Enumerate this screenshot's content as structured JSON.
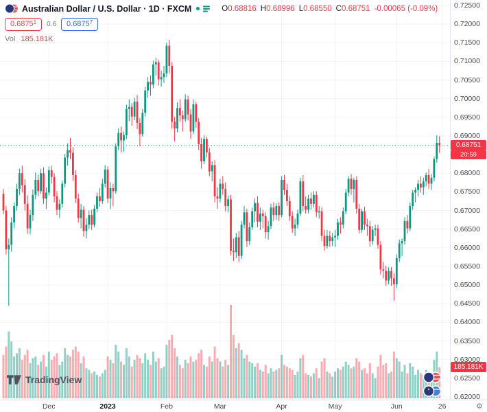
{
  "legend": {
    "title": "Australian Dollar / U.S. Dollar · 1D · FXCM",
    "ohlc": {
      "o_label": "O",
      "o": "0.68816",
      "h_label": "H",
      "h": "0.68996",
      "l_label": "L",
      "l": "0.68550",
      "c_label": "C",
      "c": "0.68751",
      "change": "-0.00065 (-0.09%)"
    },
    "sell": {
      "value": "0.6875",
      "sup": "1"
    },
    "spread": "0.6",
    "buy": {
      "value": "0.6875",
      "sup": "7"
    },
    "vol_label": "Vol",
    "vol_value": "185.181K"
  },
  "axis_badges": {
    "price_badge": "0.68751",
    "countdown": "20:59",
    "volume_badge": "185.181K"
  },
  "footer": {
    "logo_text": "TradingView",
    "gear_icon": "⚙"
  },
  "colors": {
    "up": "#089981",
    "down": "#f23645",
    "vol_up": "rgba(8,153,129,0.45)",
    "vol_down": "rgba(242,54,69,0.42)",
    "grid": "#f0f3fa",
    "accent_buy": "#2962ff",
    "badge_bg": "#f23645"
  },
  "chart_data": {
    "type": "candlestick",
    "title": "Australian Dollar / U.S. Dollar",
    "symbol": "AUD/USD",
    "interval": "1D",
    "exchange": "FXCM",
    "last_close": 0.68751,
    "volume_unit": "K",
    "price_axis": {
      "min": 0.62,
      "max": 0.725,
      "step": 0.005,
      "tick_labels": [
        "0.72500",
        "0.72000",
        "0.71500",
        "0.71000",
        "0.70500",
        "0.70000",
        "0.69500",
        "0.69000",
        "0.68500",
        "0.68000",
        "0.67500",
        "0.67000",
        "0.66500",
        "0.66000",
        "0.65500",
        "0.65000",
        "0.64500",
        "0.64000",
        "0.63500",
        "0.63000",
        "0.62500",
        "0.62000"
      ]
    },
    "time_ticks": [
      {
        "label": "Dec",
        "i": 17
      },
      {
        "label": "2023",
        "i": 39,
        "major": true
      },
      {
        "label": "Feb",
        "i": 61
      },
      {
        "label": "Mar",
        "i": 81
      },
      {
        "label": "Apr",
        "i": 104
      },
      {
        "label": "May",
        "i": 124
      },
      {
        "label": "Jun",
        "i": 147
      },
      {
        "label": "26",
        "i": 164
      }
    ],
    "candles_format": [
      "open",
      "high",
      "low",
      "close",
      "volume_K"
    ],
    "candles": [
      [
        0.6745,
        0.6758,
        0.669,
        0.67,
        260
      ],
      [
        0.67,
        0.6712,
        0.6582,
        0.6596,
        310
      ],
      [
        0.6596,
        0.6625,
        0.6445,
        0.6608,
        400
      ],
      [
        0.6608,
        0.6682,
        0.659,
        0.6668,
        340
      ],
      [
        0.6668,
        0.6722,
        0.6652,
        0.6712,
        250
      ],
      [
        0.6712,
        0.6772,
        0.67,
        0.6758,
        270
      ],
      [
        0.6758,
        0.6812,
        0.6742,
        0.68,
        300
      ],
      [
        0.68,
        0.682,
        0.6748,
        0.6768,
        230
      ],
      [
        0.6768,
        0.6784,
        0.67,
        0.6718,
        260
      ],
      [
        0.6718,
        0.674,
        0.6638,
        0.6652,
        290
      ],
      [
        0.6652,
        0.6702,
        0.6636,
        0.6688,
        210
      ],
      [
        0.6688,
        0.6756,
        0.6672,
        0.6742,
        240
      ],
      [
        0.6742,
        0.6802,
        0.673,
        0.6782,
        250
      ],
      [
        0.6782,
        0.6796,
        0.6738,
        0.6752,
        200
      ],
      [
        0.6752,
        0.6812,
        0.6744,
        0.68,
        220
      ],
      [
        0.68,
        0.6816,
        0.6718,
        0.6732,
        260
      ],
      [
        0.6732,
        0.6762,
        0.6704,
        0.6748,
        190
      ],
      [
        0.6748,
        0.6818,
        0.674,
        0.6808,
        280
      ],
      [
        0.6808,
        0.682,
        0.6772,
        0.679,
        230
      ],
      [
        0.679,
        0.68,
        0.6722,
        0.6738,
        250
      ],
      [
        0.6738,
        0.6752,
        0.6688,
        0.6702,
        270
      ],
      [
        0.6702,
        0.673,
        0.668,
        0.6718,
        200
      ],
      [
        0.6718,
        0.678,
        0.6708,
        0.6772,
        220
      ],
      [
        0.6772,
        0.6852,
        0.6762,
        0.6842,
        300
      ],
      [
        0.6842,
        0.688,
        0.682,
        0.6862,
        260
      ],
      [
        0.6862,
        0.6895,
        0.6838,
        0.6855,
        250
      ],
      [
        0.6855,
        0.687,
        0.678,
        0.6795,
        290
      ],
      [
        0.6795,
        0.6808,
        0.672,
        0.6732,
        310
      ],
      [
        0.6732,
        0.6745,
        0.6668,
        0.668,
        280
      ],
      [
        0.668,
        0.6718,
        0.6652,
        0.6702,
        210
      ],
      [
        0.6702,
        0.6712,
        0.663,
        0.6645,
        250
      ],
      [
        0.6645,
        0.668,
        0.6625,
        0.6662,
        180
      ],
      [
        0.6662,
        0.67,
        0.665,
        0.6688,
        170
      ],
      [
        0.6688,
        0.6702,
        0.6648,
        0.6662,
        150
      ],
      [
        0.6662,
        0.6715,
        0.6655,
        0.6705,
        160
      ],
      [
        0.6705,
        0.6748,
        0.6695,
        0.6738,
        140
      ],
      [
        0.6738,
        0.676,
        0.671,
        0.6725,
        130
      ],
      [
        0.6725,
        0.6785,
        0.6718,
        0.6772,
        150
      ],
      [
        0.6772,
        0.6822,
        0.6762,
        0.681,
        170
      ],
      [
        0.681,
        0.6818,
        0.672,
        0.6732,
        250
      ],
      [
        0.6732,
        0.6776,
        0.6704,
        0.676,
        230
      ],
      [
        0.676,
        0.6772,
        0.6712,
        0.6752,
        210
      ],
      [
        0.6752,
        0.688,
        0.6745,
        0.6872,
        320
      ],
      [
        0.6872,
        0.692,
        0.6862,
        0.6908,
        280
      ],
      [
        0.6908,
        0.6925,
        0.6856,
        0.6888,
        220
      ],
      [
        0.6888,
        0.6912,
        0.6858,
        0.6902,
        200
      ],
      [
        0.6902,
        0.6984,
        0.6892,
        0.6972,
        300
      ],
      [
        0.6972,
        0.6998,
        0.694,
        0.6978,
        250
      ],
      [
        0.6978,
        0.6988,
        0.6928,
        0.6952,
        190
      ],
      [
        0.6952,
        0.7002,
        0.6942,
        0.6992,
        230
      ],
      [
        0.6992,
        0.701,
        0.6918,
        0.6935,
        260
      ],
      [
        0.6935,
        0.6948,
        0.6872,
        0.6905,
        240
      ],
      [
        0.6905,
        0.6972,
        0.6898,
        0.6962,
        210
      ],
      [
        0.6962,
        0.7032,
        0.6952,
        0.7022,
        270
      ],
      [
        0.7022,
        0.7058,
        0.7002,
        0.7045,
        230
      ],
      [
        0.7045,
        0.7062,
        0.7008,
        0.7038,
        200
      ],
      [
        0.7038,
        0.7102,
        0.7028,
        0.7092,
        280
      ],
      [
        0.7092,
        0.711,
        0.7062,
        0.7098,
        220
      ],
      [
        0.7098,
        0.7105,
        0.7035,
        0.7052,
        240
      ],
      [
        0.7052,
        0.7075,
        0.7032,
        0.7058,
        180
      ],
      [
        0.7058,
        0.7088,
        0.7042,
        0.7068,
        190
      ],
      [
        0.7068,
        0.715,
        0.7058,
        0.7142,
        320
      ],
      [
        0.7142,
        0.7158,
        0.7068,
        0.7088,
        350
      ],
      [
        0.7088,
        0.7098,
        0.692,
        0.6938,
        380
      ],
      [
        0.6938,
        0.6952,
        0.6886,
        0.692,
        300
      ],
      [
        0.692,
        0.699,
        0.691,
        0.6975,
        250
      ],
      [
        0.6975,
        0.6998,
        0.6938,
        0.6955,
        200
      ],
      [
        0.6955,
        0.6968,
        0.6912,
        0.6945,
        180
      ],
      [
        0.6945,
        0.7012,
        0.6938,
        0.6998,
        230
      ],
      [
        0.6998,
        0.7008,
        0.6942,
        0.6958,
        210
      ],
      [
        0.6958,
        0.6972,
        0.6892,
        0.6912,
        250
      ],
      [
        0.6912,
        0.6998,
        0.6905,
        0.6985,
        220
      ],
      [
        0.6985,
        0.6992,
        0.6922,
        0.6938,
        230
      ],
      [
        0.6938,
        0.6948,
        0.6862,
        0.6878,
        270
      ],
      [
        0.6878,
        0.6895,
        0.6812,
        0.6832,
        290
      ],
      [
        0.6832,
        0.6902,
        0.6825,
        0.6892,
        200
      ],
      [
        0.6892,
        0.6898,
        0.6842,
        0.6856,
        190
      ],
      [
        0.6856,
        0.6868,
        0.6792,
        0.6805,
        250
      ],
      [
        0.6805,
        0.6832,
        0.6778,
        0.6822,
        220
      ],
      [
        0.6822,
        0.6835,
        0.6722,
        0.6738,
        310
      ],
      [
        0.6738,
        0.6762,
        0.6705,
        0.6732,
        240
      ],
      [
        0.6732,
        0.6785,
        0.6722,
        0.6772,
        220
      ],
      [
        0.6772,
        0.6792,
        0.6742,
        0.6758,
        190
      ],
      [
        0.6758,
        0.6775,
        0.6698,
        0.6712,
        230
      ],
      [
        0.6712,
        0.674,
        0.6695,
        0.673,
        200
      ],
      [
        0.673,
        0.6742,
        0.658,
        0.6592,
        560
      ],
      [
        0.6592,
        0.6625,
        0.6565,
        0.6588,
        380
      ],
      [
        0.6588,
        0.664,
        0.6572,
        0.6628,
        300
      ],
      [
        0.6628,
        0.6645,
        0.6562,
        0.6578,
        330
      ],
      [
        0.6578,
        0.6672,
        0.657,
        0.6662,
        290
      ],
      [
        0.6662,
        0.6712,
        0.6652,
        0.6695,
        240
      ],
      [
        0.6695,
        0.6705,
        0.6602,
        0.6618,
        260
      ],
      [
        0.6618,
        0.6668,
        0.6608,
        0.6655,
        220
      ],
      [
        0.6655,
        0.6708,
        0.6648,
        0.6698,
        210
      ],
      [
        0.6698,
        0.6732,
        0.6668,
        0.672,
        190
      ],
      [
        0.672,
        0.6738,
        0.6655,
        0.667,
        210
      ],
      [
        0.667,
        0.6708,
        0.6648,
        0.6692,
        170
      ],
      [
        0.6692,
        0.6702,
        0.6652,
        0.6685,
        160
      ],
      [
        0.6685,
        0.6695,
        0.6625,
        0.6642,
        200
      ],
      [
        0.6642,
        0.6672,
        0.6622,
        0.6658,
        150
      ],
      [
        0.6658,
        0.6718,
        0.665,
        0.6708,
        180
      ],
      [
        0.6708,
        0.6722,
        0.6672,
        0.6688,
        160
      ],
      [
        0.6688,
        0.672,
        0.6675,
        0.6712,
        170
      ],
      [
        0.6712,
        0.6722,
        0.6672,
        0.6688,
        180
      ],
      [
        0.6688,
        0.6792,
        0.6682,
        0.6782,
        260
      ],
      [
        0.6782,
        0.6796,
        0.6742,
        0.6755,
        200
      ],
      [
        0.6755,
        0.6772,
        0.6712,
        0.6725,
        190
      ],
      [
        0.6725,
        0.6738,
        0.6672,
        0.6685,
        180
      ],
      [
        0.6685,
        0.6698,
        0.664,
        0.6652,
        170
      ],
      [
        0.6652,
        0.6678,
        0.6632,
        0.6662,
        140
      ],
      [
        0.6662,
        0.6702,
        0.6652,
        0.6692,
        160
      ],
      [
        0.6692,
        0.6788,
        0.6685,
        0.6778,
        240
      ],
      [
        0.6778,
        0.6795,
        0.6698,
        0.6712,
        260
      ],
      [
        0.6712,
        0.6738,
        0.6692,
        0.6702,
        150
      ],
      [
        0.6702,
        0.6742,
        0.6692,
        0.6732,
        140
      ],
      [
        0.6732,
        0.6748,
        0.6702,
        0.6718,
        130
      ],
      [
        0.6718,
        0.6752,
        0.6708,
        0.6742,
        150
      ],
      [
        0.6742,
        0.6752,
        0.6682,
        0.6695,
        180
      ],
      [
        0.6695,
        0.6712,
        0.6678,
        0.6698,
        120
      ],
      [
        0.6698,
        0.6708,
        0.6618,
        0.6632,
        220
      ],
      [
        0.6632,
        0.6648,
        0.6592,
        0.6605,
        240
      ],
      [
        0.6605,
        0.6648,
        0.6598,
        0.6632,
        160
      ],
      [
        0.6632,
        0.6645,
        0.6602,
        0.6618,
        150
      ],
      [
        0.6618,
        0.664,
        0.6605,
        0.6628,
        130
      ],
      [
        0.6628,
        0.6648,
        0.6602,
        0.6632,
        160
      ],
      [
        0.6632,
        0.6678,
        0.6622,
        0.6668,
        180
      ],
      [
        0.6668,
        0.6682,
        0.6638,
        0.6662,
        170
      ],
      [
        0.6662,
        0.6708,
        0.6652,
        0.6698,
        190
      ],
      [
        0.6698,
        0.6758,
        0.669,
        0.6748,
        220
      ],
      [
        0.6748,
        0.6792,
        0.6738,
        0.6785,
        200
      ],
      [
        0.6785,
        0.6798,
        0.6742,
        0.6758,
        180
      ],
      [
        0.6758,
        0.6788,
        0.6722,
        0.6782,
        190
      ],
      [
        0.6782,
        0.6792,
        0.6692,
        0.6705,
        240
      ],
      [
        0.6705,
        0.6718,
        0.6638,
        0.6648,
        220
      ],
      [
        0.6648,
        0.6705,
        0.664,
        0.6698,
        170
      ],
      [
        0.6698,
        0.671,
        0.6648,
        0.6662,
        180
      ],
      [
        0.6662,
        0.6678,
        0.6632,
        0.6658,
        150
      ],
      [
        0.6658,
        0.6672,
        0.6602,
        0.6618,
        210
      ],
      [
        0.6618,
        0.6658,
        0.6608,
        0.6648,
        150
      ],
      [
        0.6648,
        0.6662,
        0.6632,
        0.6652,
        120
      ],
      [
        0.6652,
        0.6662,
        0.6598,
        0.6608,
        190
      ],
      [
        0.6608,
        0.6618,
        0.6528,
        0.6542,
        260
      ],
      [
        0.6542,
        0.6562,
        0.6518,
        0.6538,
        200
      ],
      [
        0.6538,
        0.6552,
        0.6498,
        0.6512,
        210
      ],
      [
        0.6512,
        0.6548,
        0.6502,
        0.6538,
        150
      ],
      [
        0.6538,
        0.6548,
        0.6498,
        0.6518,
        160
      ],
      [
        0.6518,
        0.6532,
        0.6458,
        0.6502,
        280
      ],
      [
        0.6502,
        0.6582,
        0.6492,
        0.6572,
        240
      ],
      [
        0.6572,
        0.6622,
        0.6562,
        0.6612,
        220
      ],
      [
        0.6612,
        0.6625,
        0.6578,
        0.6618,
        160
      ],
      [
        0.6618,
        0.6682,
        0.6608,
        0.6672,
        200
      ],
      [
        0.6672,
        0.6688,
        0.6638,
        0.6652,
        150
      ],
      [
        0.6652,
        0.6722,
        0.6645,
        0.6712,
        210
      ],
      [
        0.6712,
        0.6755,
        0.6702,
        0.6748,
        190
      ],
      [
        0.6748,
        0.6762,
        0.6722,
        0.6755,
        140
      ],
      [
        0.6755,
        0.6782,
        0.6738,
        0.6772,
        170
      ],
      [
        0.6772,
        0.6792,
        0.6748,
        0.6762,
        150
      ],
      [
        0.6762,
        0.6788,
        0.6742,
        0.6778,
        140
      ],
      [
        0.6778,
        0.6802,
        0.6765,
        0.6795,
        170
      ],
      [
        0.6795,
        0.6812,
        0.6758,
        0.6772,
        130
      ],
      [
        0.6772,
        0.6798,
        0.6755,
        0.6788,
        140
      ],
      [
        0.6788,
        0.6845,
        0.6778,
        0.6838,
        230
      ],
      [
        0.6838,
        0.6902,
        0.6828,
        0.68816,
        280
      ],
      [
        0.68816,
        0.68996,
        0.6855,
        0.68751,
        185.181
      ]
    ]
  }
}
